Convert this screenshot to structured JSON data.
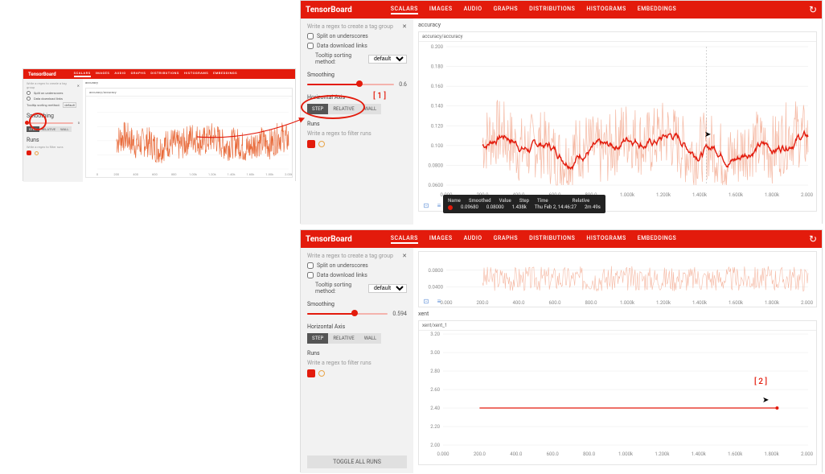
{
  "brand": "TensorBoard",
  "tabs": [
    "SCALARS",
    "IMAGES",
    "AUDIO",
    "GRAPHS",
    "DISTRIBUTIONS",
    "HISTOGRAMS",
    "EMBEDDINGS"
  ],
  "active_tab": 0,
  "sidebar": {
    "regex_placeholder": "Write a regex to create a tag group",
    "split_label": "Split on underscores",
    "download_label": "Data download links",
    "tooltip_method_label": "Tooltip sorting method:",
    "tooltip_method_value": "default",
    "smoothing_label": "Smoothing",
    "horiz_axis_label": "Horizontal Axis",
    "axis_buttons": [
      "STEP",
      "RELATIVE",
      "WALL"
    ],
    "runs_label": "Runs",
    "runs_filter_placeholder": "Write a regex to filter runs",
    "toggle_all": "TOGGLE ALL RUNS"
  },
  "panel_main_top": {
    "section_title": "accuracy",
    "card_title": "accuracy/accuracy",
    "smoothing_value": "0.6",
    "slider_fill_pct": 60,
    "y_ticks": [
      "0.200",
      "0.180",
      "0.160",
      "0.140",
      "0.120",
      "0.100",
      "0.0800",
      "0.0600"
    ],
    "x_ticks": [
      "0.000",
      "200.0",
      "400.0",
      "600.0",
      "800.0",
      "1.000k",
      "1.200k",
      "1.400k",
      "1.600k",
      "1.800k",
      "2.000k"
    ],
    "y_range": [
      0.06,
      0.2
    ],
    "x_range": [
      0,
      2000
    ],
    "data_x_start": 200,
    "raw_color": "#f5b9a4",
    "smooth_color": "#e31b0c",
    "grid_color": "#e8e8e8",
    "tooltip": {
      "headers": [
        "Name",
        "Smoothed",
        "Value",
        "Step",
        "Time",
        "Relative"
      ],
      "row": [
        "",
        "0.09680",
        "0.08000",
        "1.438k",
        "Thu Feb 2, 14:46:27",
        "2m 49s"
      ]
    }
  },
  "panel_main_bottom": {
    "smoothing_value": "0.594",
    "slider_fill_pct": 59,
    "mini_chart": {
      "y_ticks": [
        "0.0800",
        "0.0400"
      ],
      "x_ticks": [
        "0.000",
        "200.0",
        "400.0",
        "600.0",
        "800.0",
        "1.000k",
        "1.200k",
        "1.400k",
        "1.600k",
        "1.800k",
        "2.000k"
      ],
      "raw_color": "#f5b9a4",
      "grid_color": "#e8e8e8"
    },
    "xent": {
      "section_title": "xent",
      "card_title": "xent/xent_1",
      "y_ticks": [
        "3.20",
        "3.00",
        "2.80",
        "2.60",
        "2.40",
        "2.20",
        "2.00"
      ],
      "x_ticks": [
        "0.000",
        "200.0",
        "400.0",
        "600.0",
        "800.0",
        "1.000k",
        "1.200k",
        "1.400k",
        "1.600k",
        "1.800k",
        "2.000k"
      ],
      "y_range": [
        2.0,
        3.2
      ],
      "x_range": [
        0,
        2000
      ],
      "line_y": 2.4,
      "line_color": "#e31b0c",
      "grid_color": "#e8e8e8"
    }
  },
  "panel_thumb": {
    "smoothing_value": "0",
    "section_title": "accuracy",
    "card_title": "accuracy/accuracy",
    "x_ticks": [
      "0",
      "200",
      "400",
      "600",
      "800",
      "1.00k",
      "1.20k",
      "1.40k",
      "1.60k",
      "1.80k",
      "2.00k"
    ],
    "raw_color": "#e86a3a",
    "grid_color": "#eee"
  },
  "annotations": {
    "label1": "[ 1 ]",
    "label2": "[ 2 ]"
  },
  "colors": {
    "header_bg": "#e31b0c",
    "sidebar_bg": "#f2f2f2"
  }
}
